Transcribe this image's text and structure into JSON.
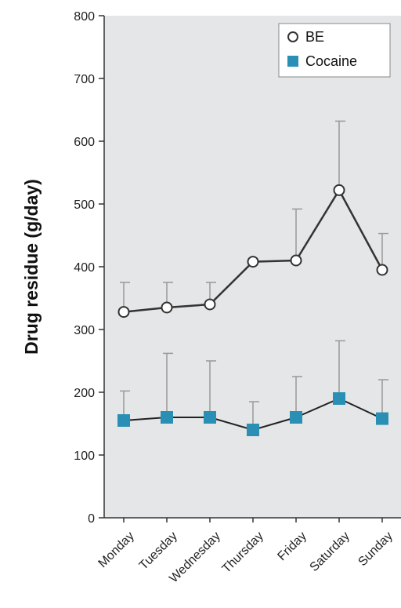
{
  "chart_data": {
    "type": "line",
    "title": "",
    "xlabel": "",
    "ylabel": "Drug residue (g/day)",
    "categories": [
      "Monday",
      "Tuesday",
      "Wednesday",
      "Thursday",
      "Friday",
      "Saturday",
      "Sunday"
    ],
    "ylim": [
      0,
      800
    ],
    "yticks": [
      0,
      100,
      200,
      300,
      400,
      500,
      600,
      700,
      800
    ],
    "grid": false,
    "legend_position": "top-right",
    "series": [
      {
        "name": "BE",
        "marker": "open-circle",
        "color": "#333333",
        "values": [
          328,
          335,
          340,
          408,
          410,
          522,
          395
        ],
        "error_upper": [
          375,
          375,
          375,
          408,
          492,
          632,
          453
        ]
      },
      {
        "name": "Cocaine",
        "marker": "filled-square",
        "color": "#2a8fb5",
        "values": [
          155,
          160,
          160,
          140,
          160,
          190,
          158
        ],
        "error_upper": [
          202,
          262,
          250,
          185,
          225,
          282,
          220
        ]
      }
    ]
  },
  "colors": {
    "plot_background": "#e5e6e7",
    "axis": "#333333",
    "be_line": "#333333",
    "cocaine_marker": "#2a8fb5",
    "error_bar": "#999999"
  }
}
